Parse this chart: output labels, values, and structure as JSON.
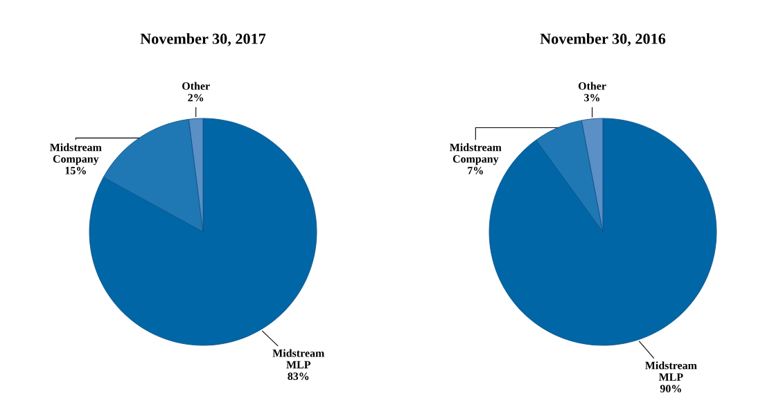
{
  "chart_data": [
    {
      "type": "pie",
      "title": "November 30, 2017",
      "categories": [
        "Midstream\nMLP\n83%",
        "Midstream\nCompany\n15%",
        "Other\n2%"
      ],
      "values": [
        83,
        15,
        2
      ],
      "colors": [
        "#0066a6",
        "#1f78b4",
        "#5a90c6"
      ]
    },
    {
      "type": "pie",
      "title": "November 30, 2016",
      "categories": [
        "Midstream\nMLP\n90%",
        "Midstream\nCompany\n7%",
        "Other\n3%"
      ],
      "values": [
        90,
        7,
        3
      ],
      "colors": [
        "#0066a6",
        "#1f78b4",
        "#5a90c6"
      ]
    }
  ]
}
